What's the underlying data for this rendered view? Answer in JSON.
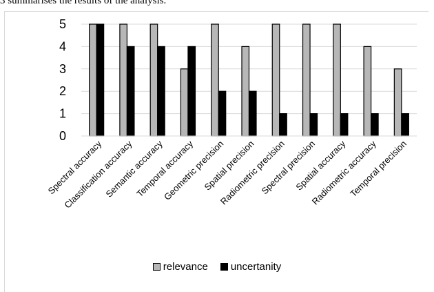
{
  "page": {
    "top_text": "3 summarises the results of the analysis."
  },
  "chart_data": {
    "type": "bar",
    "categories": [
      "Spectral accuracy",
      "Classification accuracy",
      "Semantic accuracy",
      "Temporal accuracy",
      "Geometric precision",
      "Spatial precision",
      "Radiometric precision",
      "Spectral precision",
      "Spatial accuracy",
      "Radiometric accuracy",
      "Temporal precision"
    ],
    "series": [
      {
        "name": "relevance",
        "color": "#b7b7b7",
        "stroke": "#000000",
        "values": [
          5,
          5,
          5,
          3,
          5,
          4,
          5,
          5,
          5,
          4,
          3
        ]
      },
      {
        "name": "uncertanity",
        "color": "#000000",
        "stroke": "#000000",
        "values": [
          5,
          4,
          4,
          4,
          2,
          2,
          1,
          1,
          1,
          1,
          1
        ]
      }
    ],
    "ylim": [
      0,
      5
    ],
    "yticks": [
      0,
      1,
      2,
      3,
      4,
      5
    ],
    "grid": true,
    "legend_position": "bottom",
    "title": "",
    "xlabel": "",
    "ylabel": ""
  }
}
